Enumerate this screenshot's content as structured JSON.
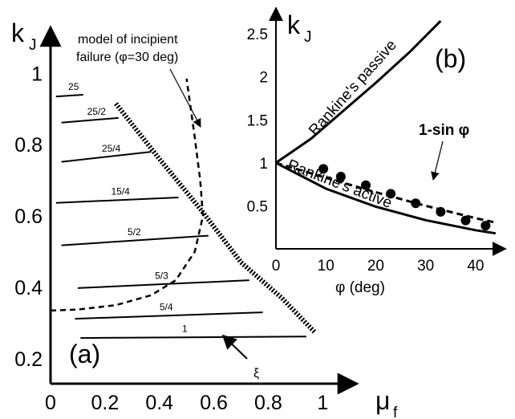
{
  "chart_data": [
    {
      "panel_label": "(a)",
      "type": "line",
      "xlabel_main": "μ",
      "xlabel_sub": "f",
      "ylabel_main": "k",
      "ylabel_sub": "J",
      "xlim": [
        0,
        1.12
      ],
      "ylim": [
        0.13,
        1.12
      ],
      "x_ticks": [
        {
          "v": 0,
          "t": "0"
        },
        {
          "v": 0.2,
          "t": "0.2"
        },
        {
          "v": 0.4,
          "t": "0.4"
        },
        {
          "v": 0.6,
          "t": "0.6"
        },
        {
          "v": 0.8,
          "t": "0.8"
        },
        {
          "v": 1,
          "t": "1"
        }
      ],
      "y_ticks": [
        {
          "v": 1,
          "t": "1"
        },
        {
          "v": 0.8,
          "t": "0.8"
        },
        {
          "v": 0.6,
          "t": "0.6"
        },
        {
          "v": 0.4,
          "t": "0.4"
        },
        {
          "v": 0.2,
          "t": "0.2"
        }
      ],
      "xi_series": [
        {
          "label": "25",
          "points": [
            [
              0.02,
              0.935
            ],
            [
              0.12,
              0.94
            ]
          ]
        },
        {
          "label": "25/2",
          "points": [
            [
              0.04,
              0.862
            ],
            [
              0.25,
              0.875
            ]
          ]
        },
        {
          "label": "25/4",
          "points": [
            [
              0.04,
              0.752
            ],
            [
              0.37,
              0.78
            ]
          ]
        },
        {
          "label": "15/4",
          "points": [
            [
              0.02,
              0.637
            ],
            [
              0.47,
              0.652
            ]
          ]
        },
        {
          "label": "5/2",
          "points": [
            [
              0.04,
              0.518
            ],
            [
              0.58,
              0.545
            ]
          ]
        },
        {
          "label": "5/3",
          "points": [
            [
              0.1,
              0.398
            ],
            [
              0.73,
              0.42
            ]
          ]
        },
        {
          "label": "5/4",
          "points": [
            [
              0.09,
              0.312
            ],
            [
              0.78,
              0.33
            ]
          ]
        },
        {
          "label": "1",
          "points": [
            [
              0.11,
              0.258
            ],
            [
              0.94,
              0.262
            ]
          ]
        }
      ],
      "critical_curve": [
        [
          0.24,
          0.915
        ],
        [
          0.4,
          0.76
        ],
        [
          0.55,
          0.62
        ],
        [
          0.7,
          0.47
        ],
        [
          0.85,
          0.37
        ],
        [
          0.97,
          0.275
        ]
      ],
      "incipient_failure_curve": [
        [
          0.0,
          0.335
        ],
        [
          0.1,
          0.338
        ],
        [
          0.24,
          0.35
        ],
        [
          0.37,
          0.378
        ],
        [
          0.46,
          0.42
        ],
        [
          0.53,
          0.5
        ],
        [
          0.56,
          0.6
        ],
        [
          0.55,
          0.7
        ],
        [
          0.53,
          0.82
        ],
        [
          0.5,
          0.985
        ]
      ],
      "annotations": {
        "model_line1": "model of  incipient",
        "model_line2": "failure (φ=30 deg)",
        "xi": "ξ"
      }
    },
    {
      "panel_label": "(b)",
      "type": "line",
      "xlabel": "φ (deg)",
      "ylabel_main": "k",
      "ylabel_sub": "J",
      "xlim": [
        0,
        45
      ],
      "ylim": [
        0,
        2.8
      ],
      "x_ticks": [
        {
          "v": 0,
          "t": "0"
        },
        {
          "v": 10,
          "t": "10"
        },
        {
          "v": 20,
          "t": "20"
        },
        {
          "v": 30,
          "t": "30"
        },
        {
          "v": 40,
          "t": "40"
        }
      ],
      "y_ticks": [
        {
          "v": 0.5,
          "t": "0.5"
        },
        {
          "v": 1,
          "t": "1"
        },
        {
          "v": 1.5,
          "t": "1.5"
        },
        {
          "v": 2,
          "t": "2"
        },
        {
          "v": 2.5,
          "t": "2.5"
        }
      ],
      "series": [
        {
          "name": "Rankine's passive",
          "style": "solid",
          "points": [
            [
              0,
              1
            ],
            [
              7,
              1.28
            ],
            [
              13,
              1.58
            ],
            [
              20,
              1.93
            ],
            [
              27,
              2.3
            ],
            [
              33,
              2.65
            ]
          ]
        },
        {
          "name": "Rankine's active",
          "style": "solid",
          "points": [
            [
              0,
              1
            ],
            [
              10,
              0.7
            ],
            [
              20,
              0.49
            ],
            [
              30,
              0.333
            ],
            [
              40,
              0.217
            ],
            [
              44,
              0.18
            ]
          ]
        },
        {
          "name": "1-sin φ",
          "style": "dashed",
          "points": [
            [
              0,
              1
            ],
            [
              10,
              0.826
            ],
            [
              20,
              0.658
            ],
            [
              30,
              0.5
            ],
            [
              40,
              0.357
            ],
            [
              44,
              0.305
            ]
          ]
        }
      ],
      "scatter": [
        [
          9.5,
          0.93
        ],
        [
          13,
          0.84
        ],
        [
          18,
          0.74
        ],
        [
          23,
          0.64
        ],
        [
          28,
          0.53
        ],
        [
          33,
          0.43
        ],
        [
          38,
          0.33
        ],
        [
          42,
          0.27
        ]
      ],
      "annotations": {
        "passive": "Rankine's passive",
        "active": "Rankine's active",
        "one_minus_sin": "1-sin φ"
      }
    }
  ]
}
